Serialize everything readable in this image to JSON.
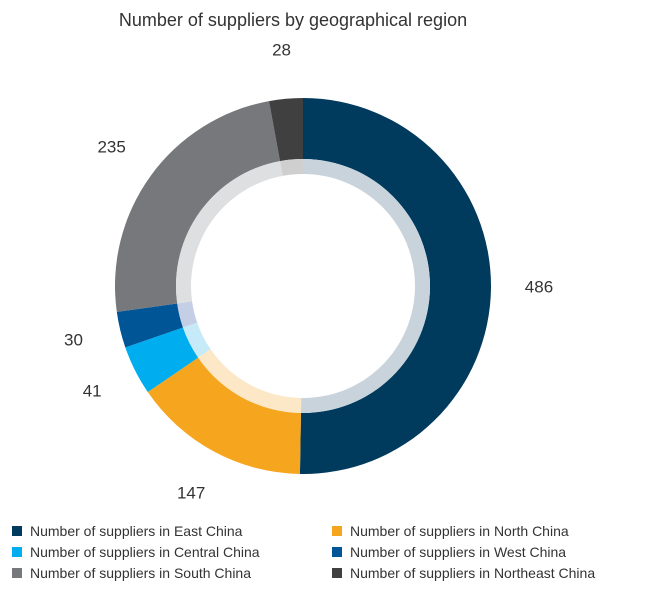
{
  "chart_data": {
    "type": "pie",
    "title": "Number of suppliers by geographical region",
    "categories": [
      "Number of suppliers in East China",
      "Number of suppliers in North China",
      "Number of suppliers in Central China",
      "Number of suppliers in West China",
      "Number of suppliers in South China",
      "Number of suppliers in Northeast China"
    ],
    "values": [
      486,
      147,
      41,
      30,
      235,
      28
    ],
    "colors": [
      "#003A5D",
      "#F6A51F",
      "#00AEEF",
      "#005596",
      "#77787B",
      "#404041"
    ],
    "inner_colors": [
      "#C9D3DC",
      "#FCE7C6",
      "#C7EAF9",
      "#C4CFE6",
      "#DEDFE0",
      "#CFCFD0"
    ],
    "legend_position": "bottom"
  }
}
